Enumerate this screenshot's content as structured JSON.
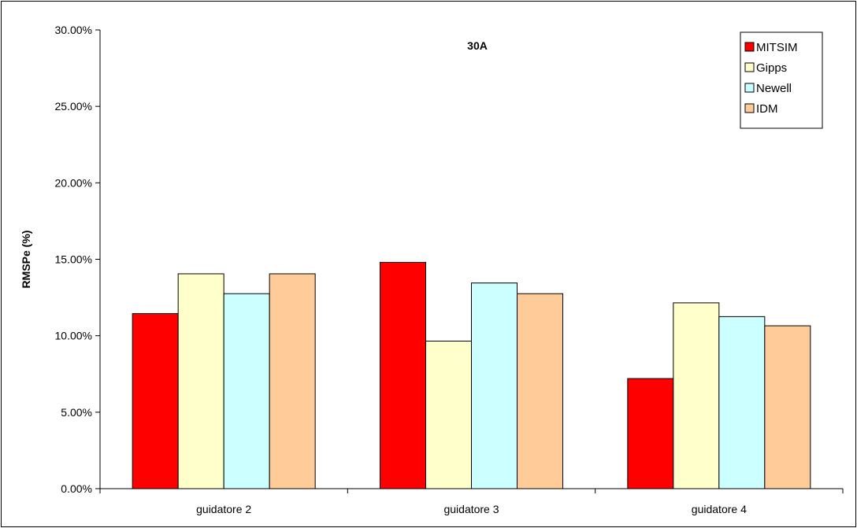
{
  "chart_data": {
    "type": "bar",
    "title": "30A",
    "xlabel": "",
    "ylabel": "RMSPe (%)",
    "ylim": [
      0,
      30
    ],
    "yticks": [
      "0.00%",
      "5.00%",
      "10.00%",
      "15.00%",
      "20.00%",
      "25.00%",
      "30.00%"
    ],
    "categories": [
      "guidatore 2",
      "guidatore 3",
      "guidatore 4"
    ],
    "series": [
      {
        "name": "MITSIM",
        "color": "#ff0000",
        "values": [
          11.45,
          14.8,
          7.2
        ]
      },
      {
        "name": "Gipps",
        "color": "#ffffcc",
        "values": [
          14.05,
          9.65,
          12.15
        ]
      },
      {
        "name": "Newell",
        "color": "#ccffff",
        "values": [
          12.75,
          13.45,
          11.25
        ]
      },
      {
        "name": "IDM",
        "color": "#ffcc99",
        "values": [
          14.05,
          12.75,
          10.65
        ]
      }
    ],
    "grid": false,
    "legend_position": "top-right"
  }
}
